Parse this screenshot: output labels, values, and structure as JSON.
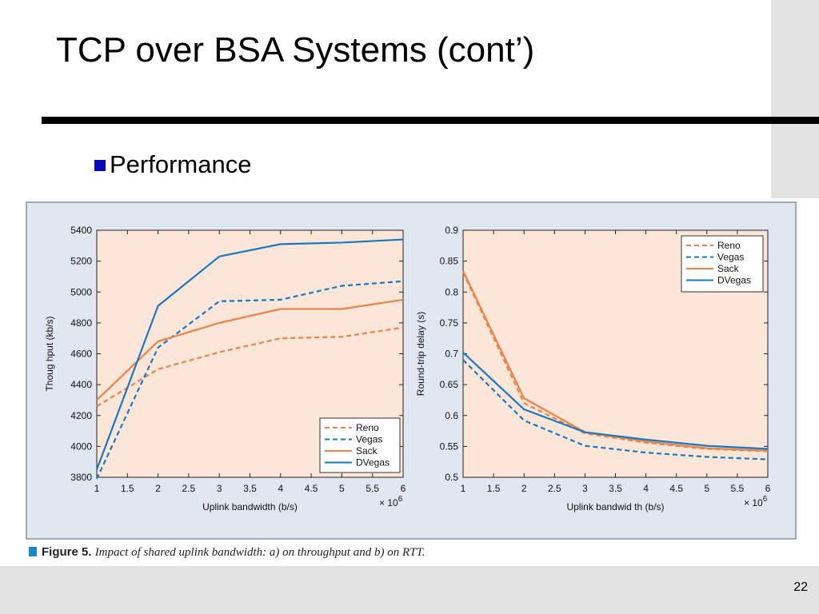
{
  "slide": {
    "title": "TCP over BSA Systems (cont’)",
    "bullet": "Performance",
    "page_number": "22",
    "colors": {
      "bullet": "#0a0ab4",
      "reno_sack": "#e8834a",
      "vegas_dvegas": "#1878c0",
      "plot_bg": "#fbe6d8",
      "figure_bg": "#e1e7f1"
    }
  },
  "figure": {
    "caption_label": "Figure 5.",
    "caption_text": "Impact of shared uplink bandwidth: a) on throughput and b) on RTT."
  },
  "chart_data": [
    {
      "type": "line",
      "title": "",
      "xlabel": "Uplink bandwidth (b/s)",
      "ylabel": "Thoug hput (kb/s)",
      "x_multiplier_label": "× 10^6",
      "xlim": [
        1,
        6
      ],
      "ylim": [
        3800,
        5400
      ],
      "xticks": [
        "1",
        "1.5",
        "2",
        "2.5",
        "3",
        "3.5",
        "4",
        "4.5",
        "5",
        "5.5",
        "6"
      ],
      "yticks": [
        "3800",
        "4000",
        "4200",
        "4400",
        "4600",
        "4800",
        "5000",
        "5200",
        "5400"
      ],
      "legend_position": "bottom-right",
      "x": [
        1,
        2,
        3,
        4,
        5,
        6
      ],
      "series": [
        {
          "name": "Reno",
          "style": "dashed",
          "color": "#e8834a",
          "values": [
            4260,
            4500,
            4610,
            4700,
            4710,
            4770
          ]
        },
        {
          "name": "Vegas",
          "style": "dashed",
          "color": "#1878c0",
          "values": [
            3790,
            4640,
            4940,
            4950,
            5040,
            5070
          ]
        },
        {
          "name": "Sack",
          "style": "solid",
          "color": "#e8834a",
          "values": [
            4300,
            4680,
            4800,
            4890,
            4890,
            4950
          ]
        },
        {
          "name": "DVegas",
          "style": "solid",
          "color": "#1878c0",
          "values": [
            3850,
            4910,
            5230,
            5310,
            5320,
            5340
          ]
        }
      ]
    },
    {
      "type": "line",
      "title": "",
      "xlabel": "Uplink bandwid th (b/s)",
      "ylabel": "Round-trip delay (s)",
      "x_multiplier_label": "× 10^6",
      "xlim": [
        1,
        6
      ],
      "ylim": [
        0.5,
        0.9
      ],
      "xticks": [
        "1",
        "1.5",
        "2",
        "2.5",
        "3",
        "3.5",
        "4",
        "4.5",
        "5",
        "5.5",
        "6"
      ],
      "yticks": [
        "0.5",
        "0.55",
        "0.6",
        "0.65",
        "0.7",
        "0.75",
        "0.8",
        "0.85",
        "0.9"
      ],
      "legend_position": "top-right",
      "x": [
        1,
        2,
        3,
        4,
        5,
        6
      ],
      "series": [
        {
          "name": "Reno",
          "style": "dashed",
          "color": "#e8834a",
          "values": [
            0.832,
            0.62,
            0.571,
            0.556,
            0.546,
            0.542
          ]
        },
        {
          "name": "Vegas",
          "style": "dashed",
          "color": "#1878c0",
          "values": [
            0.69,
            0.592,
            0.551,
            0.54,
            0.533,
            0.529
          ]
        },
        {
          "name": "Sack",
          "style": "solid",
          "color": "#e8834a",
          "values": [
            0.834,
            0.628,
            0.573,
            0.558,
            0.547,
            0.543
          ]
        },
        {
          "name": "DVegas",
          "style": "solid",
          "color": "#1878c0",
          "values": [
            0.702,
            0.61,
            0.573,
            0.561,
            0.551,
            0.546
          ]
        }
      ]
    }
  ]
}
